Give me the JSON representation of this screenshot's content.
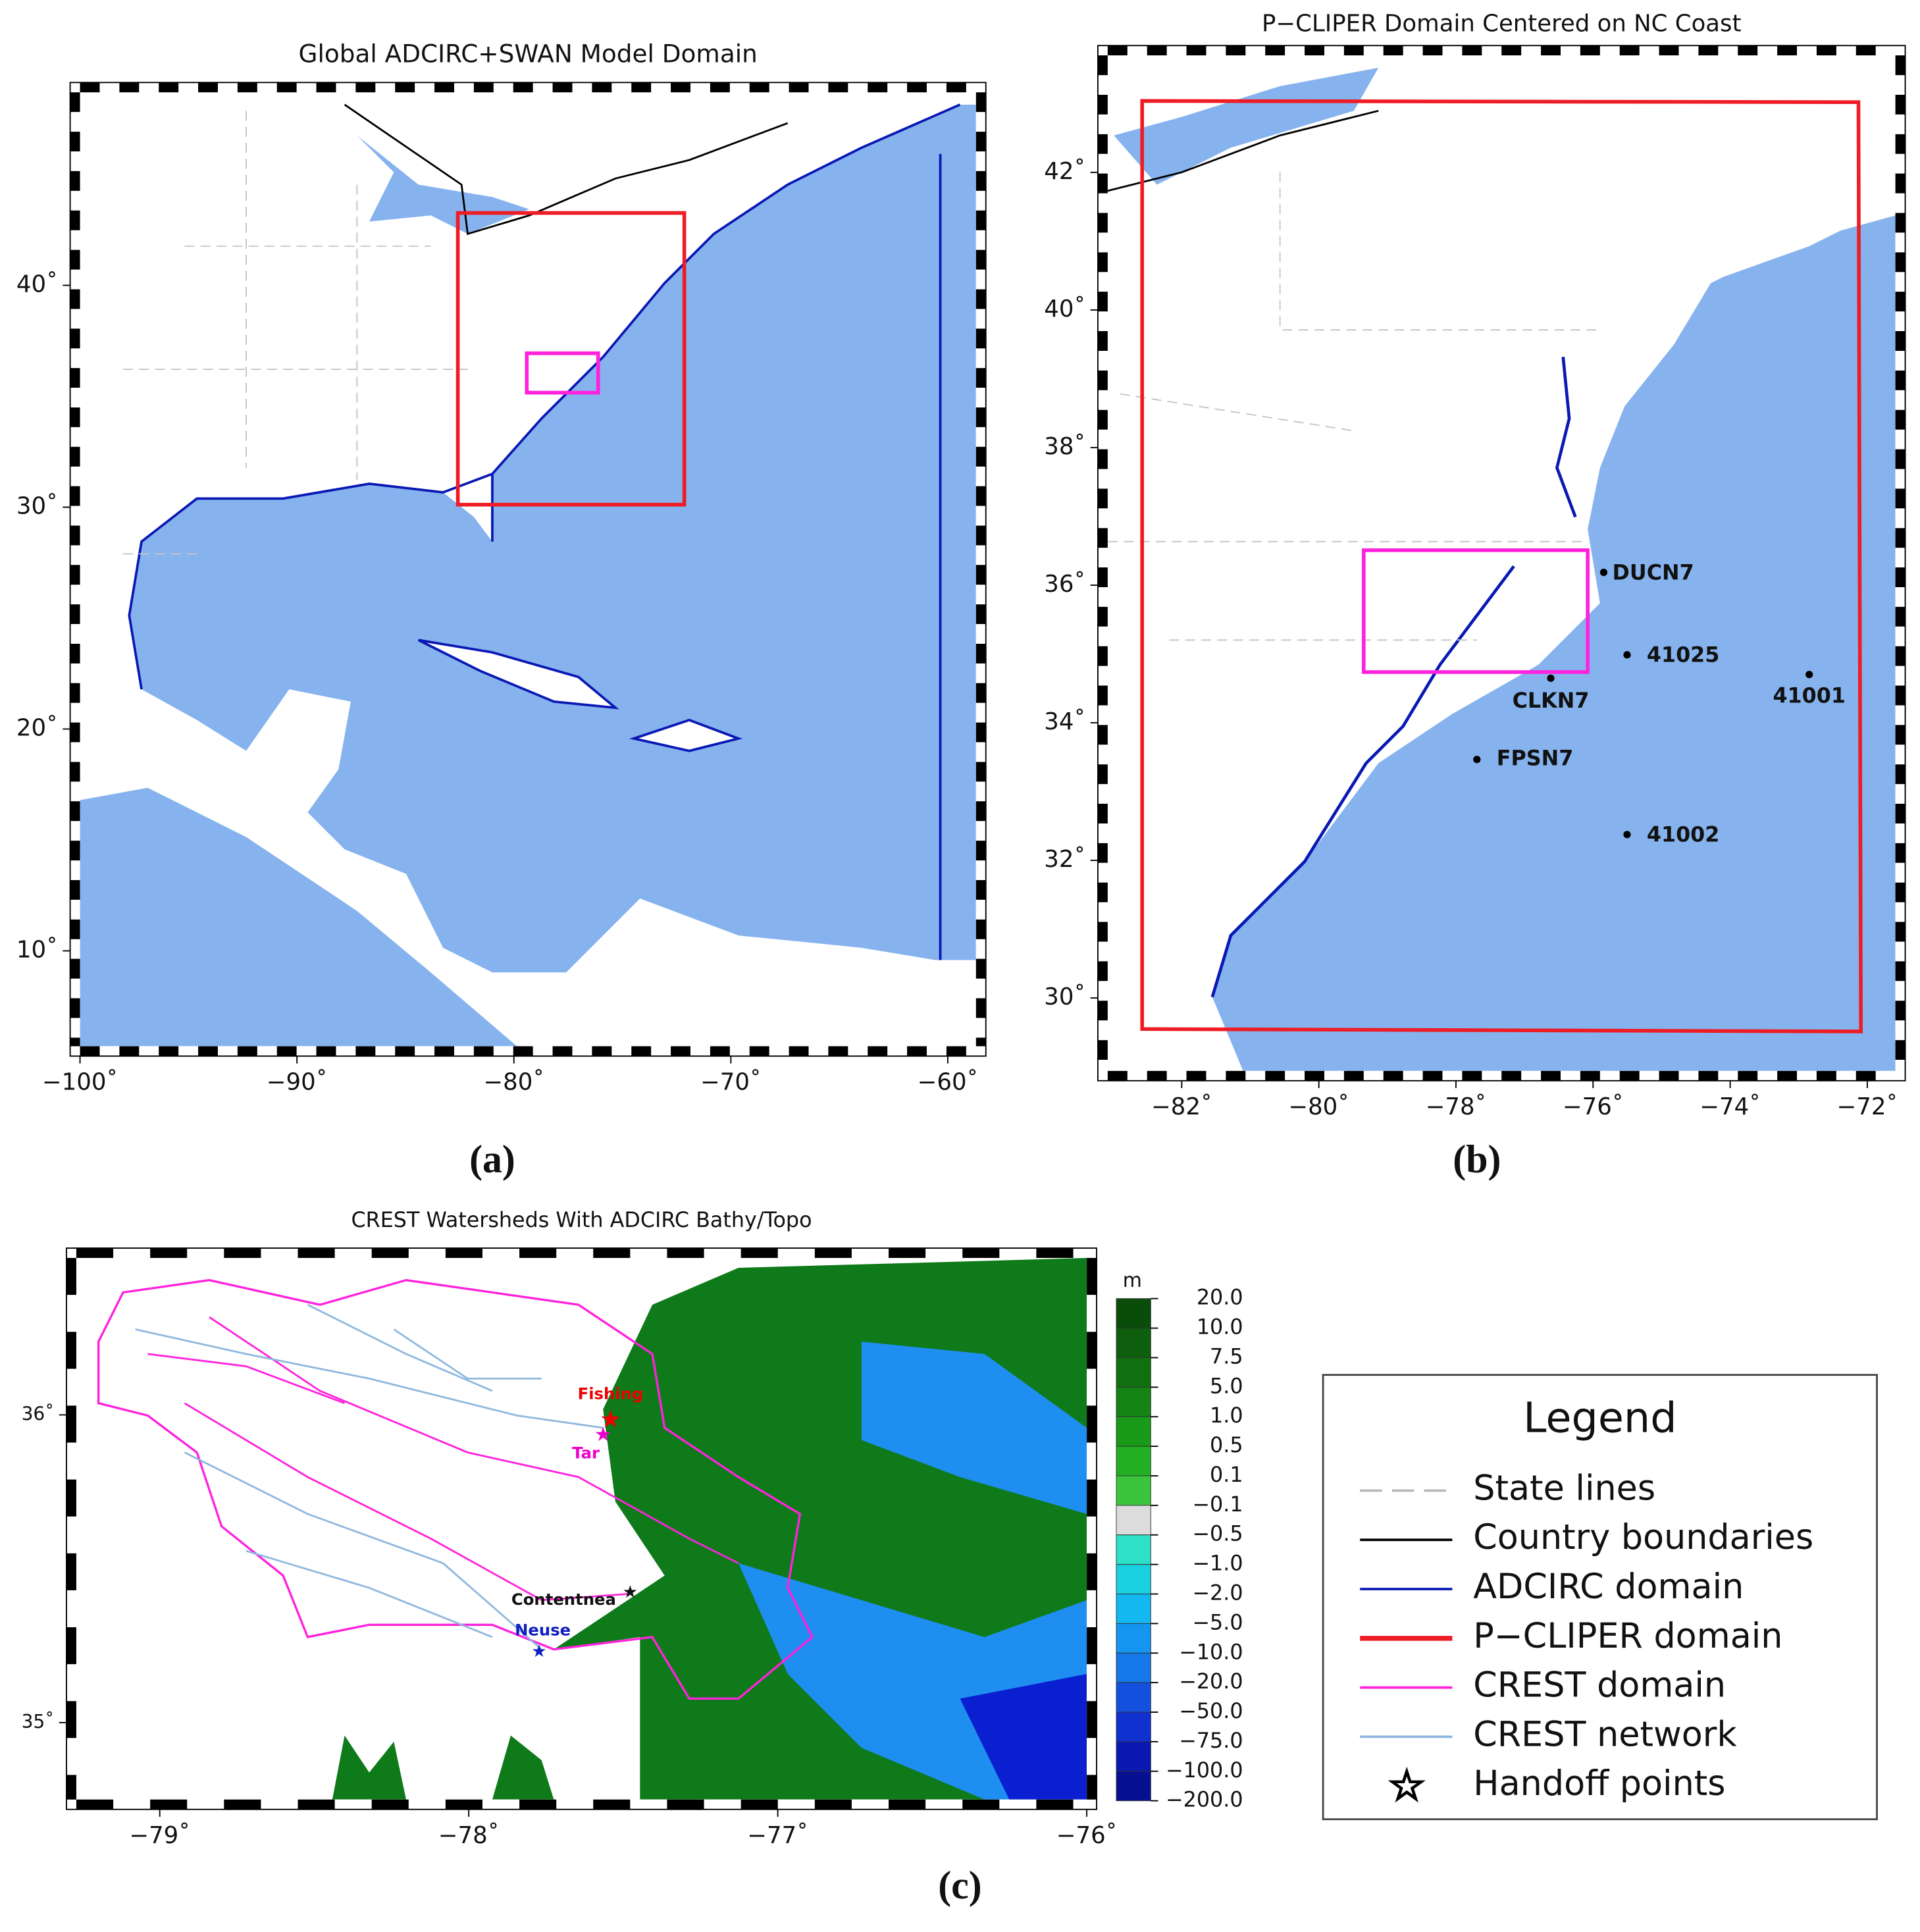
{
  "panels": [
    {
      "caption": "(a)",
      "title": "Global ADCIRC+SWAN Model Domain",
      "xlim": [
        -100,
        -58.7
      ],
      "ylim": [
        5.7,
        48.7
      ],
      "xticks": [
        {
          "value": -100,
          "label": "−100˚"
        },
        {
          "value": -90,
          "label": "−90˚"
        },
        {
          "value": -80,
          "label": "−80˚"
        },
        {
          "value": -70,
          "label": "−70˚"
        },
        {
          "value": -60,
          "label": "−60˚"
        }
      ],
      "yticks": [
        {
          "value": 10,
          "label": "10˚"
        },
        {
          "value": 20,
          "label": "20˚"
        },
        {
          "value": 30,
          "label": "30˚"
        },
        {
          "value": 40,
          "label": "40˚"
        }
      ]
    },
    {
      "caption": "(b)",
      "title": "P−CLIPER Domain Centered on NC Coast",
      "xlim": [
        -83.08,
        -71.59
      ],
      "ylim": [
        28.94,
        43.7
      ],
      "xticks": [
        {
          "value": -82,
          "label": "−82˚"
        },
        {
          "value": -80,
          "label": "−80˚"
        },
        {
          "value": -78,
          "label": "−78˚"
        },
        {
          "value": -76,
          "label": "−76˚"
        },
        {
          "value": -74,
          "label": "−74˚"
        },
        {
          "value": -72,
          "label": "−72˚"
        }
      ],
      "yticks": [
        {
          "value": 30,
          "label": "30˚"
        },
        {
          "value": 32,
          "label": "32˚"
        },
        {
          "value": 34,
          "label": "34˚"
        },
        {
          "value": 36,
          "label": "36˚"
        },
        {
          "value": 38,
          "label": "38˚"
        },
        {
          "value": 40,
          "label": "40˚"
        },
        {
          "value": 42,
          "label": "42˚"
        }
      ],
      "stations": [
        "DUCN7",
        "41025",
        "41001",
        "CLKN7",
        "FPSN7",
        "41002"
      ]
    },
    {
      "caption": "(c)",
      "title": "CREST Watersheds With ADCIRC Bathy/Topo",
      "xlim": [
        -79.27,
        -76
      ],
      "ylim": [
        34.75,
        36.51
      ],
      "xticks": [
        {
          "value": -79,
          "label": "−79˚"
        },
        {
          "value": -78,
          "label": "−78˚"
        },
        {
          "value": -77,
          "label": "−77˚"
        },
        {
          "value": -76,
          "label": "−76˚"
        }
      ],
      "yticks": [
        {
          "value": 35,
          "label": "35˚"
        },
        {
          "value": 36,
          "label": "36˚"
        }
      ],
      "points": [
        "Fishing",
        "Tar",
        "Contentnea",
        "Neuse"
      ]
    }
  ],
  "colorbar": {
    "unit": "m",
    "ticks": [
      {
        "value": 20,
        "label": "20.0"
      },
      {
        "value": 10,
        "label": "10.0"
      },
      {
        "value": 7.5,
        "label": "7.5"
      },
      {
        "value": 5,
        "label": "5.0"
      },
      {
        "value": 1,
        "label": "1.0"
      },
      {
        "value": 0.5,
        "label": "0.5"
      },
      {
        "value": 0.1,
        "label": "0.1"
      },
      {
        "value": -0.1,
        "label": "−0.1"
      },
      {
        "value": -0.5,
        "label": "−0.5"
      },
      {
        "value": -1,
        "label": "−1.0"
      },
      {
        "value": -2,
        "label": "−2.0"
      },
      {
        "value": -5,
        "label": "−5.0"
      },
      {
        "value": -10,
        "label": "−10.0"
      },
      {
        "value": -20,
        "label": "−20.0"
      },
      {
        "value": -50,
        "label": "−50.0"
      },
      {
        "value": -75,
        "label": "−75.0"
      },
      {
        "value": -100,
        "label": "−100.0"
      },
      {
        "value": -200,
        "label": "−200.0"
      }
    ],
    "colors": [
      "#0a4d0a",
      "#0d5e0d",
      "#107010",
      "#148414",
      "#199a19",
      "#22b022",
      "#3cc43c",
      "#dcdcdc",
      "#2ee0c8",
      "#1ad0e0",
      "#14b8f0",
      "#1496f0",
      "#1478e8",
      "#1450e0",
      "#1030d0",
      "#0818b0",
      "#061090"
    ]
  },
  "legend": {
    "title": "Legend",
    "items": [
      {
        "label": "State lines",
        "color": "#b8b8b8",
        "style": "dashed"
      },
      {
        "label": "Country boundaries",
        "color": "#000000",
        "style": "solid"
      },
      {
        "label": "ADCIRC domain",
        "color": "#0a18b4",
        "style": "solid"
      },
      {
        "label": "P−CLIPER domain",
        "color": "#ee1c24",
        "style": "thick"
      },
      {
        "label": "CREST domain",
        "color": "#ff22dd",
        "style": "solid"
      },
      {
        "label": "CREST network",
        "color": "#8fb8de",
        "style": "solid"
      },
      {
        "label": "Handoff points",
        "color": "#000000",
        "style": "star"
      }
    ]
  }
}
